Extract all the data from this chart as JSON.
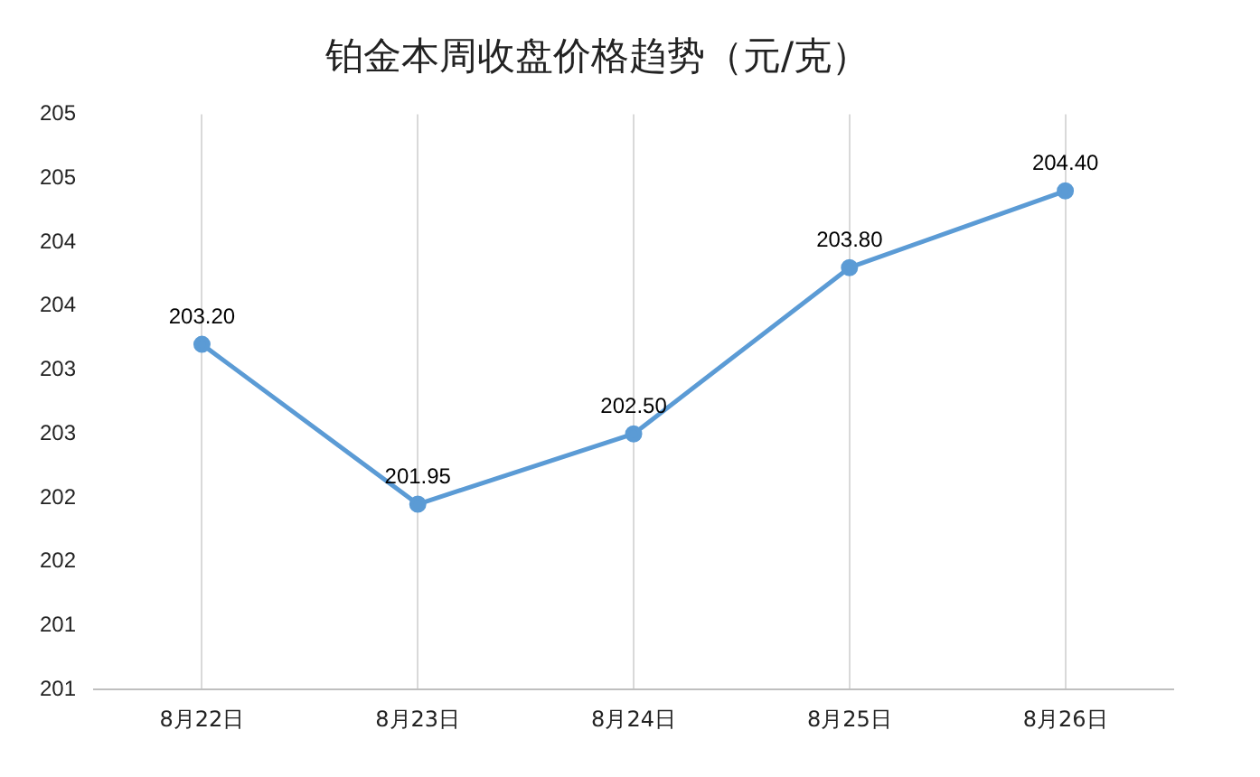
{
  "chart_data": {
    "type": "line",
    "title": "铂金本周收盘价格趋势（元/克）",
    "categories": [
      "8月22日",
      "8月23日",
      "8月24日",
      "8月25日",
      "8月26日"
    ],
    "series": [
      {
        "color": "#5b9bd5",
        "values": [
          203.2,
          201.95,
          202.5,
          203.8,
          204.4
        ],
        "value_labels": [
          "203.20",
          "201.95",
          "202.50",
          "203.80",
          "204.40"
        ]
      }
    ],
    "ylim": [
      200.5,
      205
    ],
    "yticks": [
      {
        "value": 200.5,
        "label": "201"
      },
      {
        "value": 201,
        "label": "201"
      },
      {
        "value": 201.5,
        "label": "202"
      },
      {
        "value": 202,
        "label": "202"
      },
      {
        "value": 202.5,
        "label": "203"
      },
      {
        "value": 203,
        "label": "203"
      },
      {
        "value": 203.5,
        "label": "204"
      },
      {
        "value": 204,
        "label": "204"
      },
      {
        "value": 204.5,
        "label": "205"
      },
      {
        "value": 205,
        "label": "205"
      }
    ],
    "grid": "x",
    "legend": false,
    "marker": "circle",
    "line_style": "solid"
  }
}
